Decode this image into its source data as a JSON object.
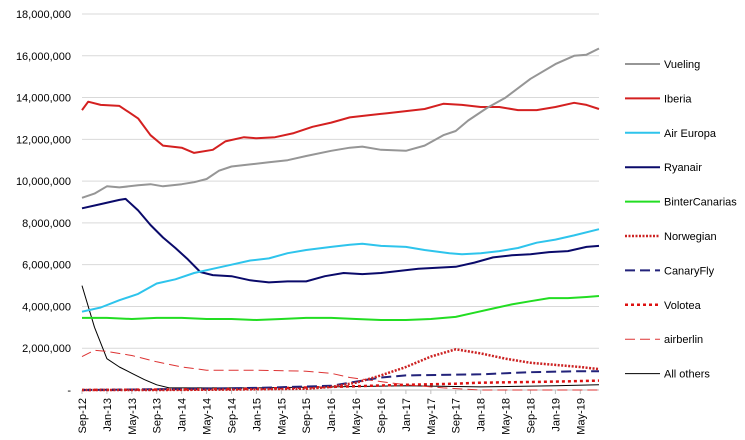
{
  "chart_data": {
    "type": "line",
    "title": "",
    "xlabel": "",
    "ylabel": "",
    "ylim": [
      0,
      18000000
    ],
    "y_ticks": [
      "18,000,000",
      "16,000,000",
      "14,000,000",
      "12,000,000",
      "10,000,000",
      "8,000,000",
      "6,000,000",
      "4,000,000",
      "2,000,000",
      "-"
    ],
    "y_tick_values": [
      18000000,
      16000000,
      14000000,
      12000000,
      10000000,
      8000000,
      6000000,
      4000000,
      2000000,
      0
    ],
    "x_ticks": [
      "Sep-12",
      "Jan-13",
      "May-13",
      "Sep-13",
      "Jan-14",
      "May-14",
      "Sep-14",
      "Jan-15",
      "May-15",
      "Sep-15",
      "Jan-16",
      "May-16",
      "Sep-16",
      "Jan-17",
      "May-17",
      "Sep-17",
      "Jan-18",
      "May-18",
      "Sep-18",
      "Jan-19",
      "May-19"
    ],
    "x_range": [
      "Sep-12",
      "Aug-19"
    ],
    "grid": "horizontal",
    "legend_position": "right",
    "series": [
      {
        "name": "Vueling",
        "color": "#969696",
        "dash": "solid",
        "points": [
          [
            "Sep-12",
            9200000
          ],
          [
            "Nov-12",
            9400000
          ],
          [
            "Jan-13",
            9750000
          ],
          [
            "Mar-13",
            9700000
          ],
          [
            "Jun-13",
            9800000
          ],
          [
            "Aug-13",
            9850000
          ],
          [
            "Oct-13",
            9750000
          ],
          [
            "Jan-14",
            9850000
          ],
          [
            "Mar-14",
            9950000
          ],
          [
            "May-14",
            10100000
          ],
          [
            "Jul-14",
            10500000
          ],
          [
            "Sep-14",
            10700000
          ],
          [
            "Dec-14",
            10800000
          ],
          [
            "Mar-15",
            10900000
          ],
          [
            "Jun-15",
            11000000
          ],
          [
            "Sep-15",
            11200000
          ],
          [
            "Jan-16",
            11450000
          ],
          [
            "Apr-16",
            11600000
          ],
          [
            "Jun-16",
            11650000
          ],
          [
            "Sep-16",
            11500000
          ],
          [
            "Jan-17",
            11450000
          ],
          [
            "Apr-17",
            11700000
          ],
          [
            "Jul-17",
            12200000
          ],
          [
            "Sep-17",
            12400000
          ],
          [
            "Nov-17",
            12900000
          ],
          [
            "Feb-18",
            13500000
          ],
          [
            "May-18",
            14000000
          ],
          [
            "Sep-18",
            14900000
          ],
          [
            "Jan-19",
            15600000
          ],
          [
            "Apr-19",
            16000000
          ],
          [
            "Jun-19",
            16050000
          ],
          [
            "Aug-19",
            16350000
          ]
        ]
      },
      {
        "name": "Iberia",
        "color": "#d42020",
        "dash": "solid",
        "points": [
          [
            "Sep-12",
            13400000
          ],
          [
            "Oct-12",
            13800000
          ],
          [
            "Dec-12",
            13650000
          ],
          [
            "Mar-13",
            13600000
          ],
          [
            "Jun-13",
            13000000
          ],
          [
            "Aug-13",
            12200000
          ],
          [
            "Oct-13",
            11700000
          ],
          [
            "Jan-14",
            11600000
          ],
          [
            "Mar-14",
            11350000
          ],
          [
            "Jun-14",
            11500000
          ],
          [
            "Aug-14",
            11900000
          ],
          [
            "Nov-14",
            12100000
          ],
          [
            "Jan-15",
            12050000
          ],
          [
            "Apr-15",
            12100000
          ],
          [
            "Jul-15",
            12300000
          ],
          [
            "Oct-15",
            12600000
          ],
          [
            "Jan-16",
            12800000
          ],
          [
            "Apr-16",
            13050000
          ],
          [
            "Jul-16",
            13150000
          ],
          [
            "Oct-16",
            13250000
          ],
          [
            "Jan-17",
            13350000
          ],
          [
            "Apr-17",
            13450000
          ],
          [
            "Jul-17",
            13700000
          ],
          [
            "Oct-17",
            13650000
          ],
          [
            "Jan-18",
            13550000
          ],
          [
            "Apr-18",
            13550000
          ],
          [
            "Jul-18",
            13400000
          ],
          [
            "Oct-18",
            13400000
          ],
          [
            "Jan-19",
            13550000
          ],
          [
            "Apr-19",
            13750000
          ],
          [
            "Jun-19",
            13650000
          ],
          [
            "Aug-19",
            13450000
          ]
        ]
      },
      {
        "name": "Air Europa",
        "color": "#2ec4ec",
        "dash": "solid",
        "points": [
          [
            "Sep-12",
            3750000
          ],
          [
            "Dec-12",
            3950000
          ],
          [
            "Mar-13",
            4300000
          ],
          [
            "Jun-13",
            4600000
          ],
          [
            "Sep-13",
            5100000
          ],
          [
            "Dec-13",
            5300000
          ],
          [
            "Mar-14",
            5600000
          ],
          [
            "Jun-14",
            5800000
          ],
          [
            "Sep-14",
            6000000
          ],
          [
            "Dec-14",
            6200000
          ],
          [
            "Mar-15",
            6300000
          ],
          [
            "Jun-15",
            6550000
          ],
          [
            "Sep-15",
            6700000
          ],
          [
            "Jan-16",
            6850000
          ],
          [
            "Apr-16",
            6950000
          ],
          [
            "Jun-16",
            7000000
          ],
          [
            "Sep-16",
            6900000
          ],
          [
            "Jan-17",
            6850000
          ],
          [
            "Apr-17",
            6700000
          ],
          [
            "Aug-17",
            6550000
          ],
          [
            "Oct-17",
            6500000
          ],
          [
            "Jan-18",
            6550000
          ],
          [
            "Apr-18",
            6650000
          ],
          [
            "Jul-18",
            6800000
          ],
          [
            "Oct-18",
            7050000
          ],
          [
            "Jan-19",
            7200000
          ],
          [
            "Apr-19",
            7400000
          ],
          [
            "Aug-19",
            7700000
          ]
        ]
      },
      {
        "name": "Ryanair",
        "color": "#0a0a6a",
        "dash": "solid",
        "points": [
          [
            "Sep-12",
            8700000
          ],
          [
            "Dec-12",
            8900000
          ],
          [
            "Mar-13",
            9100000
          ],
          [
            "Apr-13",
            9150000
          ],
          [
            "Jun-13",
            8600000
          ],
          [
            "Aug-13",
            7900000
          ],
          [
            "Oct-13",
            7300000
          ],
          [
            "Dec-13",
            6800000
          ],
          [
            "Feb-14",
            6250000
          ],
          [
            "Apr-14",
            5650000
          ],
          [
            "Jun-14",
            5500000
          ],
          [
            "Sep-14",
            5450000
          ],
          [
            "Dec-14",
            5250000
          ],
          [
            "Mar-15",
            5150000
          ],
          [
            "Jun-15",
            5200000
          ],
          [
            "Sep-15",
            5200000
          ],
          [
            "Dec-15",
            5450000
          ],
          [
            "Mar-16",
            5600000
          ],
          [
            "Jun-16",
            5550000
          ],
          [
            "Sep-16",
            5600000
          ],
          [
            "Dec-16",
            5700000
          ],
          [
            "Mar-17",
            5800000
          ],
          [
            "Jun-17",
            5850000
          ],
          [
            "Sep-17",
            5900000
          ],
          [
            "Dec-17",
            6100000
          ],
          [
            "Mar-18",
            6350000
          ],
          [
            "Jun-18",
            6450000
          ],
          [
            "Sep-18",
            6500000
          ],
          [
            "Dec-18",
            6600000
          ],
          [
            "Mar-19",
            6650000
          ],
          [
            "Jun-19",
            6850000
          ],
          [
            "Aug-19",
            6900000
          ]
        ]
      },
      {
        "name": "BinterCanarias",
        "color": "#22dd22",
        "dash": "solid",
        "points": [
          [
            "Sep-12",
            3450000
          ],
          [
            "Jan-13",
            3450000
          ],
          [
            "May-13",
            3400000
          ],
          [
            "Sep-13",
            3450000
          ],
          [
            "Jan-14",
            3450000
          ],
          [
            "May-14",
            3400000
          ],
          [
            "Sep-14",
            3400000
          ],
          [
            "Jan-15",
            3350000
          ],
          [
            "May-15",
            3400000
          ],
          [
            "Sep-15",
            3450000
          ],
          [
            "Jan-16",
            3450000
          ],
          [
            "May-16",
            3400000
          ],
          [
            "Sep-16",
            3350000
          ],
          [
            "Jan-17",
            3350000
          ],
          [
            "May-17",
            3400000
          ],
          [
            "Sep-17",
            3500000
          ],
          [
            "Dec-17",
            3700000
          ],
          [
            "Mar-18",
            3900000
          ],
          [
            "Jun-18",
            4100000
          ],
          [
            "Sep-18",
            4250000
          ],
          [
            "Dec-18",
            4400000
          ],
          [
            "Mar-19",
            4400000
          ],
          [
            "Jun-19",
            4450000
          ],
          [
            "Aug-19",
            4500000
          ]
        ]
      },
      {
        "name": "Norwegian",
        "color": "#cc2222",
        "dash": "dotted-thick",
        "points": [
          [
            "Sep-12",
            0
          ],
          [
            "Jan-13",
            0
          ],
          [
            "Sep-13",
            0
          ],
          [
            "Sep-14",
            20000
          ],
          [
            "Sep-15",
            60000
          ],
          [
            "Jan-16",
            150000
          ],
          [
            "May-16",
            350000
          ],
          [
            "Sep-16",
            700000
          ],
          [
            "Jan-17",
            1100000
          ],
          [
            "May-17",
            1600000
          ],
          [
            "Sep-17",
            1950000
          ],
          [
            "Jan-18",
            1750000
          ],
          [
            "May-18",
            1500000
          ],
          [
            "Sep-18",
            1300000
          ],
          [
            "Jan-19",
            1200000
          ],
          [
            "May-19",
            1100000
          ],
          [
            "Aug-19",
            1000000
          ]
        ]
      },
      {
        "name": "CanaryFly",
        "color": "#22227a",
        "dash": "long-dash",
        "points": [
          [
            "Sep-12",
            0
          ],
          [
            "Jan-14",
            50000
          ],
          [
            "Jan-15",
            100000
          ],
          [
            "Jan-16",
            200000
          ],
          [
            "Sep-16",
            600000
          ],
          [
            "Jan-17",
            700000
          ],
          [
            "Jan-18",
            750000
          ],
          [
            "Sep-18",
            850000
          ],
          [
            "May-19",
            900000
          ],
          [
            "Aug-19",
            900000
          ]
        ]
      },
      {
        "name": "Volotea",
        "color": "#dd1111",
        "dash": "short-dash",
        "points": [
          [
            "Sep-12",
            0
          ],
          [
            "Jan-14",
            30000
          ],
          [
            "Jan-15",
            60000
          ],
          [
            "Jan-16",
            150000
          ],
          [
            "Jan-17",
            250000
          ],
          [
            "Sep-17",
            300000
          ],
          [
            "Jan-18",
            350000
          ],
          [
            "Jan-19",
            400000
          ],
          [
            "Aug-19",
            450000
          ]
        ]
      },
      {
        "name": "airberlin",
        "color": "#dd3333",
        "dash": "long-dash-thin",
        "points": [
          [
            "Sep-12",
            1600000
          ],
          [
            "Nov-12",
            1900000
          ],
          [
            "Jan-13",
            1850000
          ],
          [
            "May-13",
            1650000
          ],
          [
            "Sep-13",
            1350000
          ],
          [
            "Jan-14",
            1100000
          ],
          [
            "May-14",
            950000
          ],
          [
            "Jan-15",
            950000
          ],
          [
            "Sep-15",
            900000
          ],
          [
            "Jan-16",
            800000
          ],
          [
            "Apr-16",
            600000
          ],
          [
            "Sep-16",
            400000
          ],
          [
            "Jan-17",
            250000
          ],
          [
            "Jul-17",
            100000
          ],
          [
            "Jan-18",
            0
          ],
          [
            "Aug-19",
            0
          ]
        ]
      },
      {
        "name": "All others",
        "color": "#000000",
        "dash": "solid-thin",
        "points": [
          [
            "Sep-12",
            5000000
          ],
          [
            "Nov-12",
            3000000
          ],
          [
            "Jan-13",
            1500000
          ],
          [
            "Mar-13",
            1100000
          ],
          [
            "May-13",
            800000
          ],
          [
            "Jul-13",
            500000
          ],
          [
            "Sep-13",
            250000
          ],
          [
            "Nov-13",
            100000
          ],
          [
            "Jan-14",
            100000
          ],
          [
            "Jan-15",
            100000
          ],
          [
            "Jan-16",
            150000
          ],
          [
            "Jan-17",
            200000
          ],
          [
            "Jan-18",
            150000
          ],
          [
            "Jan-19",
            200000
          ],
          [
            "Aug-19",
            250000
          ]
        ]
      }
    ]
  }
}
